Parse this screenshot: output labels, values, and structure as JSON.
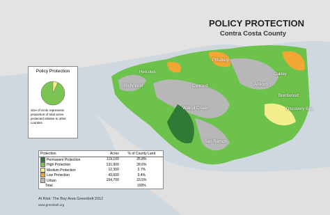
{
  "header": {
    "title": "POLICY PROTECTION",
    "subtitle": "Contra Costa County"
  },
  "inset": {
    "title": "Policy Protection",
    "note": "Size of circle represents proportion of total acres protected relative to other counties"
  },
  "places": [
    "Hercules",
    "Pittsburg",
    "Oakley",
    "Antioch",
    "Richmond",
    "Concord",
    "Brentwood",
    "Walnut Creek",
    "Discovery Bay",
    "San Ramon"
  ],
  "table": {
    "columns": [
      "Protection",
      "Acres",
      "% of County Land"
    ],
    "rows": [
      [
        "Permanent Protection",
        "119,100",
        "25.8%"
      ],
      [
        "High Protection",
        "131,900",
        "28.6%"
      ],
      [
        "Medium Protection",
        "12,300",
        "2.7%"
      ],
      [
        "Low Protection",
        "43,600",
        "9.4%"
      ],
      [
        "Urban",
        "154,700",
        "33.5%"
      ]
    ],
    "total": {
      "label": "Total",
      "percent": "100%"
    }
  },
  "footer": {
    "source": "At Risk: The Bay Area Greenbelt 2012",
    "url": "www.greenbelt.org"
  }
}
